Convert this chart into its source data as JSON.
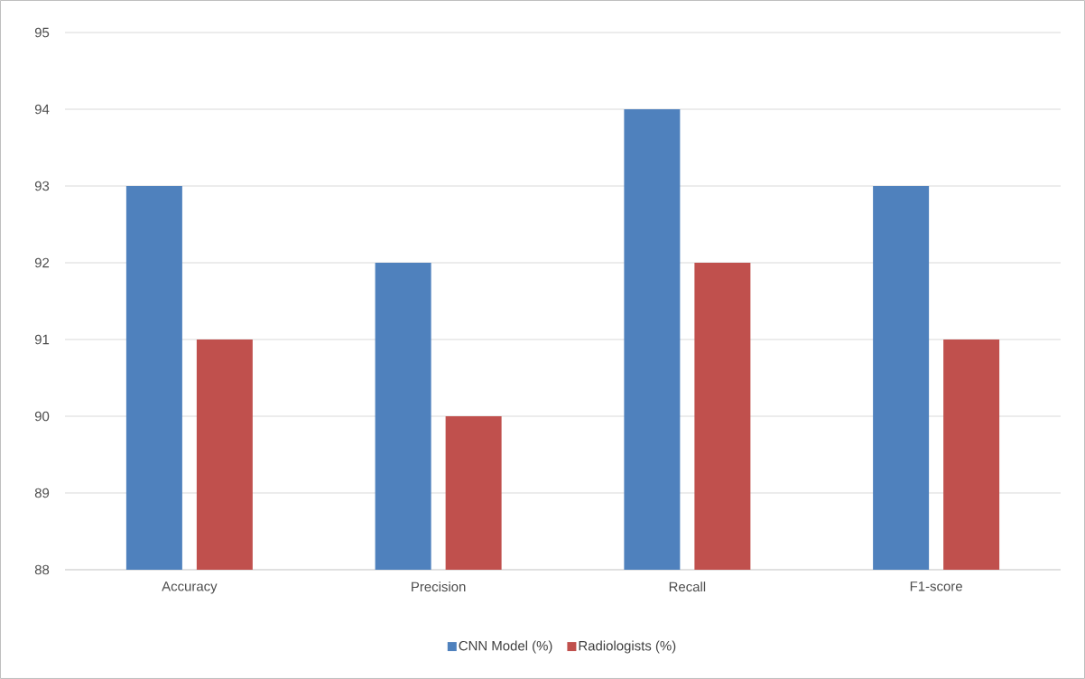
{
  "chart_data": {
    "type": "bar",
    "categories": [
      "Accuracy",
      "Precision",
      "Recall",
      "F1-score"
    ],
    "series": [
      {
        "name": "CNN Model (%)",
        "color": "#4f81bd",
        "values": [
          93,
          92,
          94,
          93
        ]
      },
      {
        "name": "Radiologists (%)",
        "color": "#c0504d",
        "values": [
          91,
          90,
          92,
          91
        ]
      }
    ],
    "ylim": [
      88,
      95
    ],
    "yticks": [
      88,
      89,
      90,
      91,
      92,
      93,
      94,
      95
    ],
    "grid": "y",
    "legend": "bottom"
  }
}
